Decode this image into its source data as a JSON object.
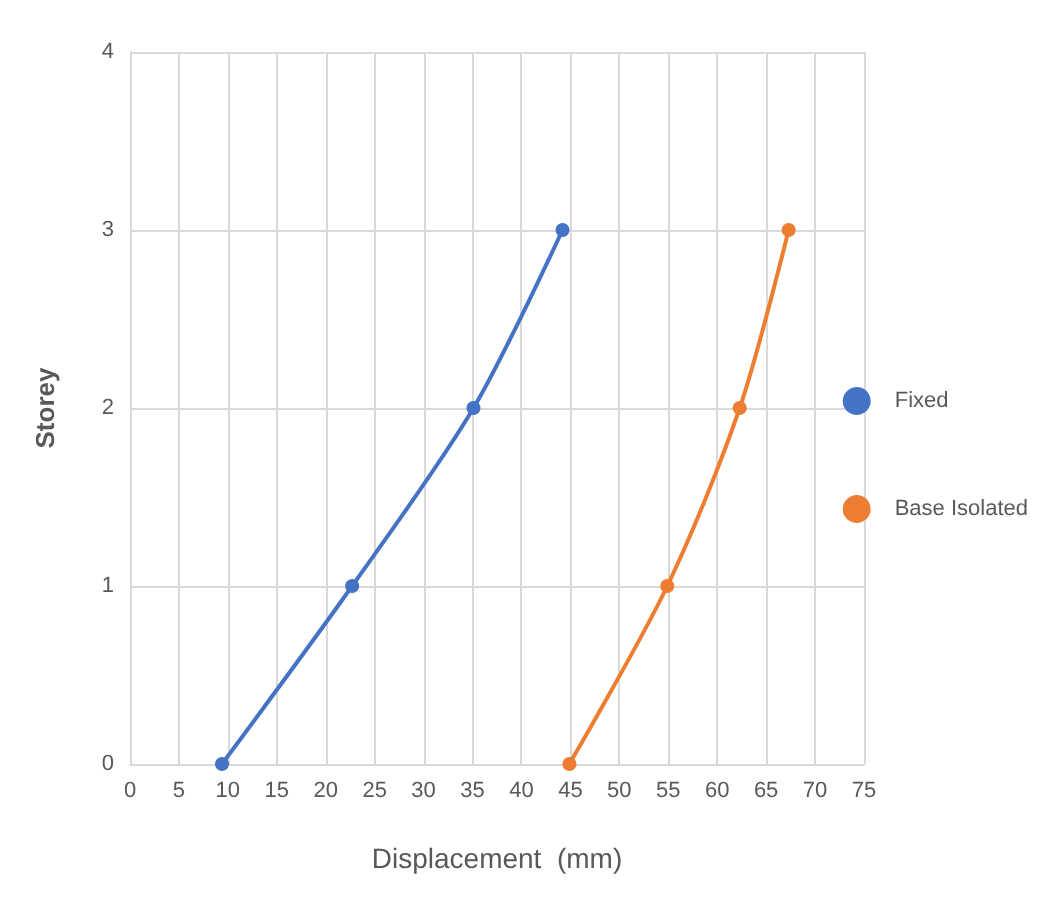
{
  "chart_data": {
    "type": "line",
    "xlabel": "Displacement  (mm)",
    "ylabel": "Storey",
    "series": [
      {
        "name": "Fixed",
        "color": "#4472c4",
        "x": [
          9.4,
          22.7,
          35.1,
          44.2
        ],
        "values": [
          0,
          1,
          2,
          3
        ]
      },
      {
        "name": "Base Isolated",
        "color": "#ed7d31",
        "x": [
          44.9,
          54.9,
          62.3,
          67.3
        ],
        "values": [
          0,
          1,
          2,
          3
        ]
      }
    ],
    "xlim": [
      0,
      75
    ],
    "xticks": [
      0,
      5,
      10,
      15,
      20,
      25,
      30,
      35,
      40,
      45,
      50,
      55,
      60,
      65,
      70,
      75
    ],
    "ylim": [
      0,
      4
    ],
    "yticks": [
      0,
      1,
      2,
      3,
      4
    ],
    "grid": true,
    "legend": "right",
    "marker": "circle",
    "line_style": "solid"
  }
}
